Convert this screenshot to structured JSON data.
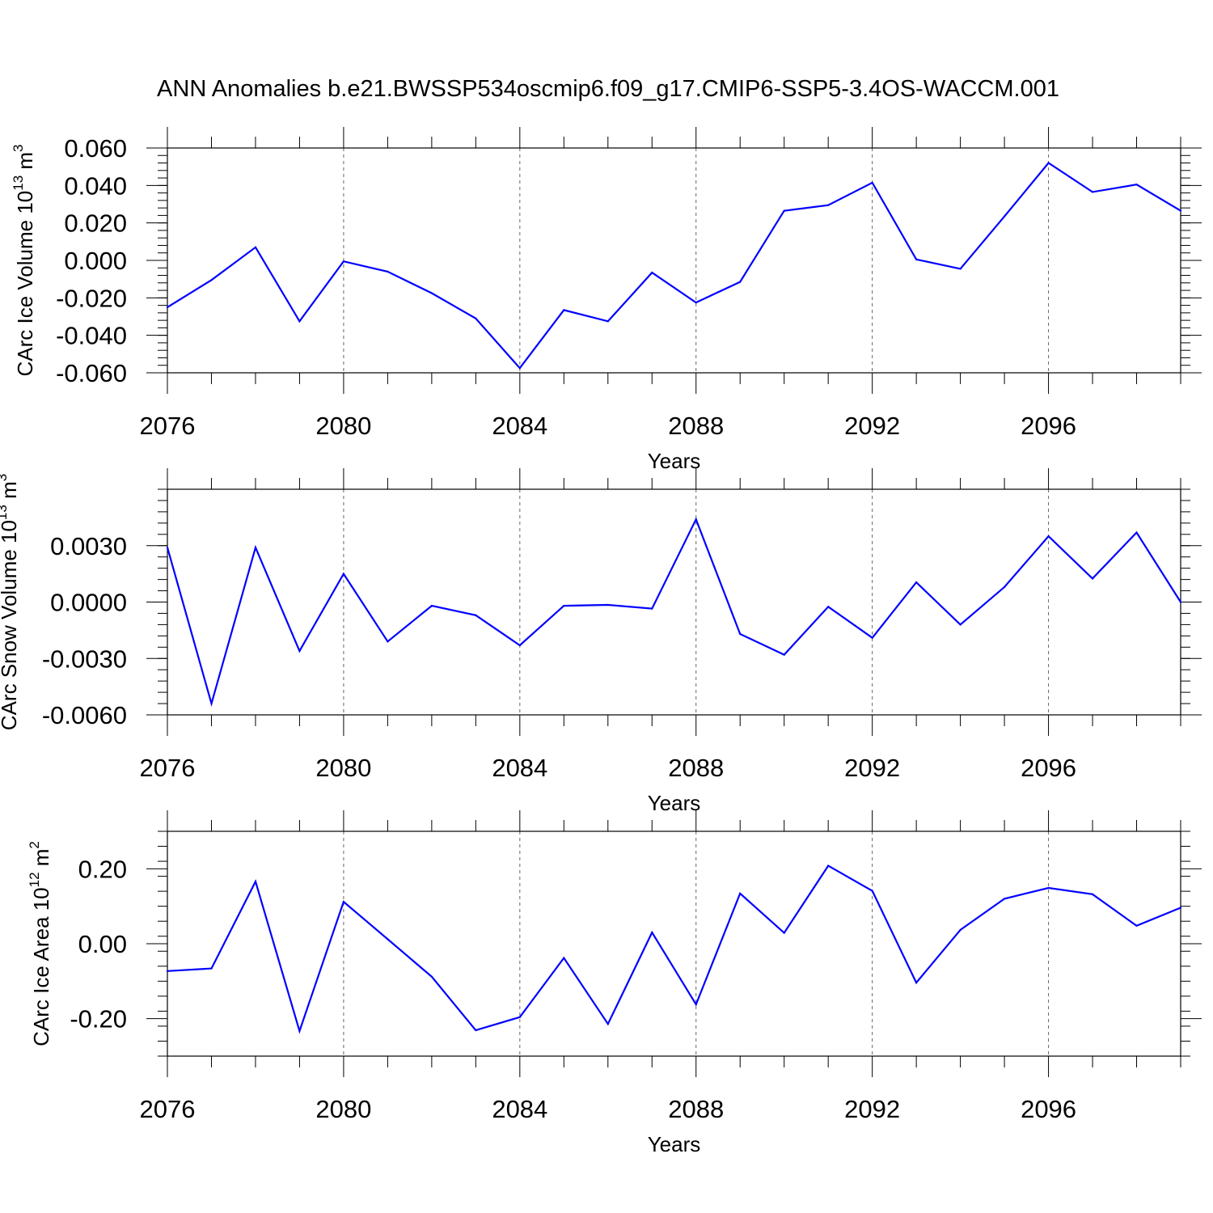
{
  "title": "ANN Anomalies b.e21.BWSSP534oscmip6.f09_g17.CMIP6-SSP5-3.4OS-WACCM.001",
  "line_color": "#0000ff",
  "chart_data": [
    {
      "type": "line",
      "ylabel": {
        "text": "CArc Ice Volume 10",
        "exp": "13",
        "unit": " m",
        "unit_exp": "3"
      },
      "xlabel": "Years",
      "xlim": [
        2076,
        2099
      ],
      "x_ticks": [
        2076,
        2080,
        2084,
        2088,
        2092,
        2096
      ],
      "x_tick_labels": [
        "2076",
        "2080",
        "2084",
        "2088",
        "2092",
        "2096"
      ],
      "ylim": [
        -0.06,
        0.06
      ],
      "y_ticks": [
        -0.06,
        -0.04,
        -0.02,
        0.0,
        0.02,
        0.04,
        0.06
      ],
      "y_tick_labels": [
        "-0.060",
        "-0.040",
        "-0.020",
        "0.000",
        "0.020",
        "0.040",
        "0.060"
      ],
      "x": [
        2076,
        2077,
        2078,
        2079,
        2080,
        2081,
        2082,
        2083,
        2084,
        2085,
        2086,
        2087,
        2088,
        2089,
        2090,
        2091,
        2092,
        2093,
        2094,
        2095,
        2096,
        2097,
        2098,
        2099
      ],
      "values": [
        -0.025,
        -0.0105,
        0.007,
        -0.0325,
        -0.0005,
        -0.006,
        -0.0175,
        -0.031,
        -0.0575,
        -0.0265,
        -0.0325,
        -0.0065,
        -0.0225,
        -0.0115,
        0.0265,
        0.0295,
        0.0415,
        0.0005,
        -0.0045,
        0.0235,
        0.052,
        0.0365,
        0.0405,
        0.0265
      ]
    },
    {
      "type": "line",
      "ylabel": {
        "text": "CArc Snow Volume 10",
        "exp": "13",
        "unit": " m",
        "unit_exp": "3"
      },
      "xlabel": "Years",
      "xlim": [
        2076,
        2099
      ],
      "x_ticks": [
        2076,
        2080,
        2084,
        2088,
        2092,
        2096
      ],
      "x_tick_labels": [
        "2076",
        "2080",
        "2084",
        "2088",
        "2092",
        "2096"
      ],
      "ylim": [
        -0.006,
        0.006
      ],
      "y_ticks": [
        -0.006,
        -0.003,
        0.0,
        0.003
      ],
      "y_tick_labels": [
        "-0.0060",
        "-0.0030",
        "0.0000",
        "0.0030"
      ],
      "x": [
        2076,
        2077,
        2078,
        2079,
        2080,
        2081,
        2082,
        2083,
        2084,
        2085,
        2086,
        2087,
        2088,
        2089,
        2090,
        2091,
        2092,
        2093,
        2094,
        2095,
        2096,
        2097,
        2098,
        2099
      ],
      "values": [
        0.0029,
        -0.0054,
        0.0029,
        -0.0026,
        0.0015,
        -0.0021,
        -0.0002,
        -0.0007,
        -0.0023,
        -0.0002,
        -0.00015,
        -0.00035,
        0.0044,
        -0.0017,
        -0.0028,
        -0.00025,
        -0.0019,
        0.00105,
        -0.0012,
        0.0008,
        0.0035,
        0.00125,
        0.0037,
        0.0
      ]
    },
    {
      "type": "line",
      "ylabel": {
        "text": "CArc Ice Area 10",
        "exp": "12",
        "unit": " m",
        "unit_exp": "2"
      },
      "xlabel": "Years",
      "xlim": [
        2076,
        2099
      ],
      "x_ticks": [
        2076,
        2080,
        2084,
        2088,
        2092,
        2096
      ],
      "x_tick_labels": [
        "2076",
        "2080",
        "2084",
        "2088",
        "2092",
        "2096"
      ],
      "ylim": [
        -0.3,
        0.3
      ],
      "y_ticks": [
        -0.2,
        0.0,
        0.2
      ],
      "y_tick_labels": [
        "-0.20",
        "0.00",
        "0.20"
      ],
      "x": [
        2076,
        2077,
        2078,
        2079,
        2080,
        2081,
        2082,
        2083,
        2084,
        2085,
        2086,
        2087,
        2088,
        2089,
        2090,
        2091,
        2092,
        2093,
        2094,
        2095,
        2096,
        2097,
        2098,
        2099
      ],
      "values": [
        -0.073,
        -0.066,
        0.166,
        -0.233,
        0.112,
        0.012,
        -0.088,
        -0.231,
        -0.196,
        -0.038,
        -0.214,
        0.03,
        -0.162,
        0.134,
        0.029,
        0.208,
        0.141,
        -0.104,
        0.037,
        0.12,
        0.149,
        0.132,
        0.048,
        0.096
      ]
    }
  ]
}
